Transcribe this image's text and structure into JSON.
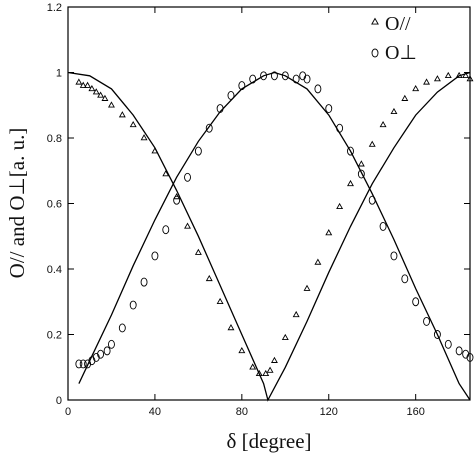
{
  "chart_data": {
    "type": "scatter",
    "title": "",
    "xlabel": "δ [degree]",
    "ylabel": "O// and O⊥[a. u.]",
    "xlim": [
      0,
      185
    ],
    "ylim": [
      0,
      1.2
    ],
    "xticks": [
      0,
      40,
      80,
      120,
      160
    ],
    "yticks": [
      0,
      0.2,
      0.4,
      0.6,
      0.8,
      1,
      1.2
    ],
    "tick_labels_x": [
      "0",
      "40",
      "80",
      "120",
      "160"
    ],
    "tick_labels_y": [
      "0",
      "0.2",
      "0.4",
      "0.6",
      "0.8",
      "1",
      "1.2"
    ],
    "grid": false,
    "legend_position": "top-right",
    "legend": [
      {
        "label": "O//",
        "marker": "triangle"
      },
      {
        "label": "O⊥",
        "marker": "circle"
      }
    ],
    "series": [
      {
        "name": "O//",
        "marker": "triangle",
        "x": [
          5,
          7,
          9,
          11,
          13,
          15,
          17,
          20,
          25,
          30,
          35,
          40,
          45,
          50,
          55,
          60,
          65,
          70,
          75,
          80,
          85,
          88,
          91,
          93,
          95,
          100,
          105,
          110,
          115,
          120,
          125,
          130,
          135,
          140,
          145,
          150,
          155,
          160,
          165,
          170,
          175,
          180,
          183,
          185
        ],
        "values": [
          0.97,
          0.96,
          0.96,
          0.95,
          0.94,
          0.93,
          0.92,
          0.9,
          0.87,
          0.84,
          0.8,
          0.76,
          0.69,
          0.62,
          0.53,
          0.45,
          0.37,
          0.3,
          0.22,
          0.15,
          0.1,
          0.08,
          0.08,
          0.09,
          0.12,
          0.19,
          0.26,
          0.34,
          0.42,
          0.51,
          0.59,
          0.66,
          0.72,
          0.78,
          0.84,
          0.88,
          0.92,
          0.95,
          0.97,
          0.98,
          0.99,
          0.99,
          0.99,
          0.98
        ]
      },
      {
        "name": "O⊥",
        "marker": "circle",
        "x": [
          5,
          7,
          9,
          11,
          13,
          15,
          18,
          20,
          25,
          30,
          35,
          40,
          45,
          50,
          55,
          60,
          65,
          70,
          75,
          80,
          85,
          90,
          95,
          100,
          105,
          108,
          110,
          115,
          120,
          125,
          130,
          135,
          140,
          145,
          150,
          155,
          160,
          165,
          170,
          175,
          180,
          183,
          185
        ],
        "values": [
          0.11,
          0.11,
          0.11,
          0.12,
          0.13,
          0.14,
          0.15,
          0.17,
          0.22,
          0.29,
          0.36,
          0.44,
          0.52,
          0.61,
          0.68,
          0.76,
          0.83,
          0.89,
          0.93,
          0.96,
          0.98,
          0.99,
          0.99,
          0.99,
          0.98,
          0.99,
          0.98,
          0.95,
          0.89,
          0.83,
          0.76,
          0.69,
          0.61,
          0.53,
          0.44,
          0.37,
          0.3,
          0.24,
          0.2,
          0.17,
          0.15,
          0.14,
          0.13
        ]
      },
      {
        "name": "",
        "marker": "line",
        "x": [
          0,
          10,
          20,
          30,
          40,
          50,
          60,
          70,
          80,
          90,
          92,
          100,
          110,
          120,
          130,
          140,
          150,
          160,
          170,
          180,
          185
        ],
        "values": [
          1,
          0.99,
          0.95,
          0.87,
          0.77,
          0.64,
          0.5,
          0.35,
          0.2,
          0.05,
          0,
          0.1,
          0.24,
          0.39,
          0.53,
          0.66,
          0.77,
          0.87,
          0.94,
          0.99,
          1
        ]
      },
      {
        "name": "",
        "marker": "line",
        "x": [
          5,
          10,
          20,
          30,
          40,
          50,
          60,
          70,
          80,
          90,
          95,
          100,
          110,
          120,
          130,
          140,
          150,
          160,
          170,
          180,
          185
        ],
        "values": [
          0.05,
          0.12,
          0.26,
          0.41,
          0.55,
          0.68,
          0.79,
          0.88,
          0.95,
          0.99,
          1,
          0.99,
          0.95,
          0.87,
          0.76,
          0.63,
          0.49,
          0.34,
          0.2,
          0.05,
          0
        ]
      }
    ]
  }
}
